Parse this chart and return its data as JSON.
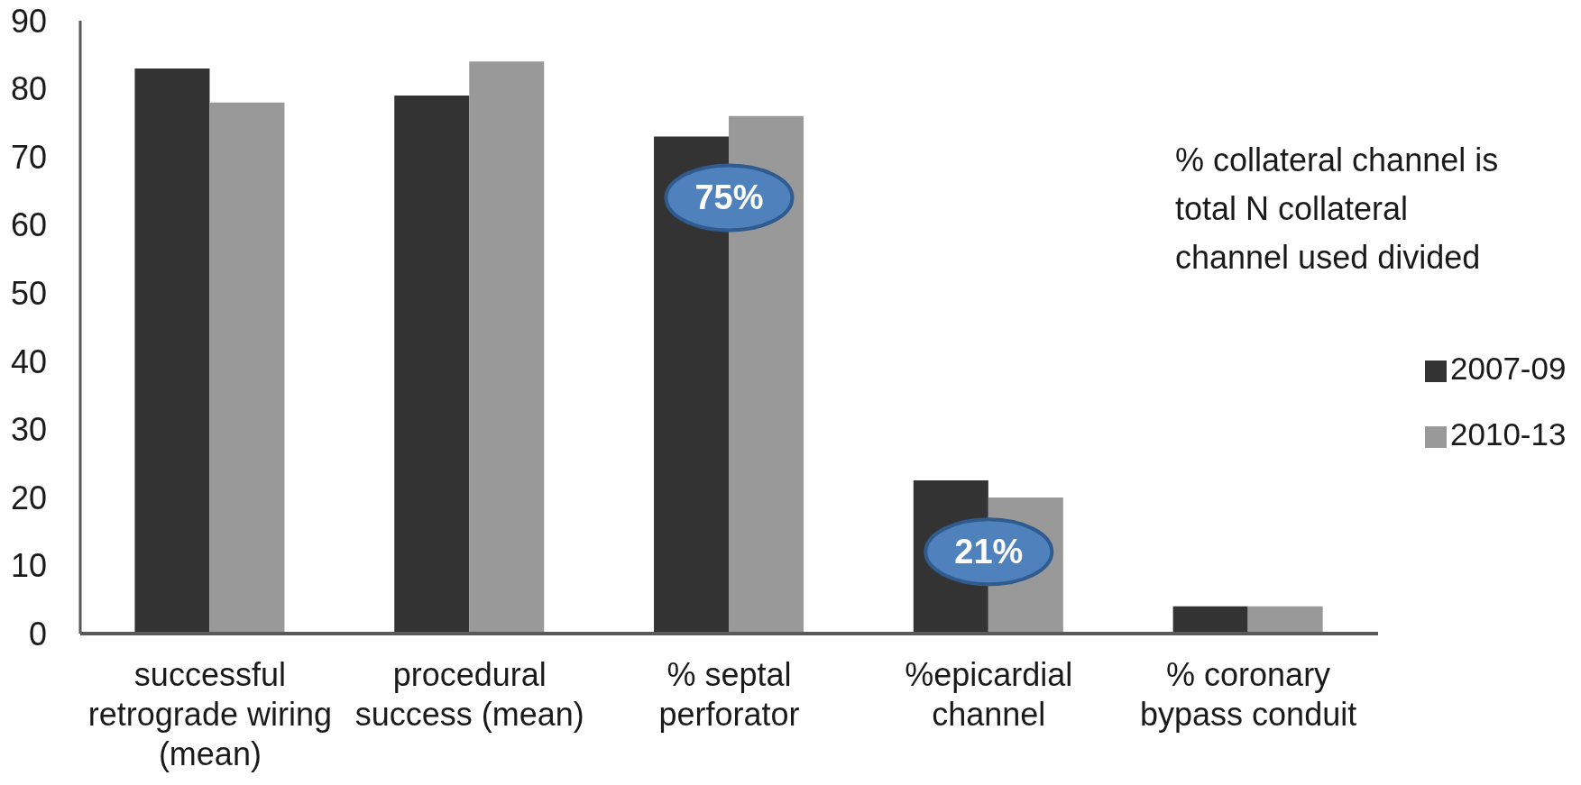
{
  "chart_data": {
    "type": "bar",
    "categories": [
      "successful retrograde wiring (mean)",
      "procedural success (mean)",
      "% septal perforator",
      "%epicardial channel",
      "% coronary bypass conduit"
    ],
    "series": [
      {
        "name": "2007-09",
        "color": "#333333",
        "values": [
          83,
          79,
          73,
          22.5,
          4
        ]
      },
      {
        "name": "2010-13",
        "color": "#999999",
        "values": [
          78,
          84,
          76,
          20,
          4
        ]
      }
    ],
    "ylim": [
      0,
      90
    ],
    "yticks": [
      0,
      10,
      20,
      30,
      40,
      50,
      60,
      70,
      80,
      90
    ],
    "legend": "right",
    "annotations": [
      {
        "text": "75%",
        "x": "% septal perforator",
        "y": 64
      },
      {
        "text": "21%",
        "x": "%epicardial channel",
        "y": 12
      },
      "% collateral channel is total N collateral channel used divided"
    ]
  }
}
